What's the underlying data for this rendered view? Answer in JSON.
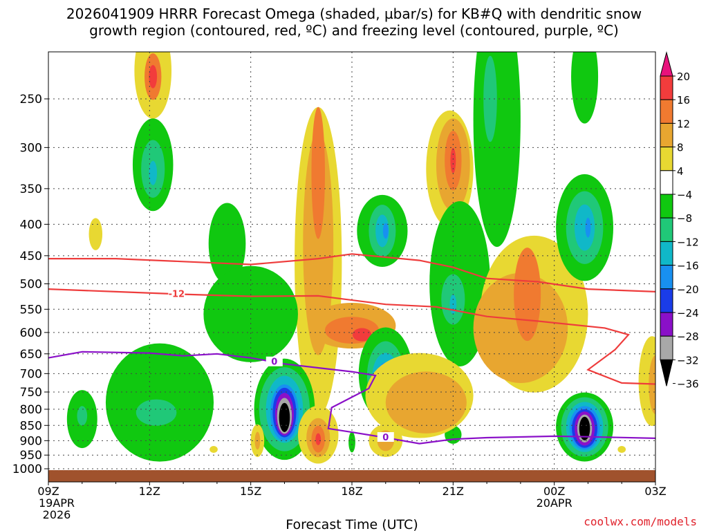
{
  "chart_data": {
    "type": "heatmap",
    "title_line1": "2026041909 HRRR Forecast Omega (shaded, µbar/s) for KB#Q with dendritic snow",
    "title_line2": "growth region (contoured, red, ºC) and freezing level (contoured, purple, ºC)",
    "xlabel": "Forecast Time (UTC)",
    "x_hours": [
      0,
      3,
      6,
      9,
      12,
      15,
      18
    ],
    "x_tick_labels": [
      "09Z",
      "12Z",
      "15Z",
      "18Z",
      "21Z",
      "00Z",
      "03Z"
    ],
    "x_date_labels": [
      {
        "hour": 0,
        "lines": [
          "19APR",
          "2026"
        ]
      },
      {
        "hour": 15,
        "lines": [
          "20APR"
        ]
      }
    ],
    "x_range_hours": [
      0,
      18
    ],
    "y_label": "",
    "y_ticks_hpa": [
      250,
      300,
      350,
      400,
      450,
      500,
      550,
      600,
      650,
      700,
      750,
      800,
      850,
      900,
      950,
      1000
    ],
    "y_range_hpa": [
      200,
      1025
    ],
    "y_scale": "log-pressure",
    "grid": true,
    "ground_color": "#a0522d",
    "colorbar": {
      "labels": [
        "20",
        "16",
        "12",
        "8",
        "4",
        "−4",
        "−8",
        "−12",
        "−16",
        "−20",
        "−24",
        "−28",
        "−32",
        "−36"
      ],
      "colors": [
        "#e8127c",
        "#f23c3c",
        "#f07a30",
        "#e8a630",
        "#e8d832",
        "#ffffff",
        "#10c810",
        "#20c878",
        "#10b8c8",
        "#1890f0",
        "#1a3ce8",
        "#8a10c8",
        "#a8a8a8",
        "#000000"
      ]
    },
    "red_contours": [
      {
        "level": "-12",
        "label_at_hour": 3.8,
        "points_h_hpa": [
          [
            0,
            510
          ],
          [
            2,
            515
          ],
          [
            4,
            520
          ],
          [
            6,
            524
          ],
          [
            8,
            523
          ],
          [
            10,
            540
          ],
          [
            11.5,
            545
          ],
          [
            13,
            565
          ],
          [
            14.5,
            575
          ],
          [
            16.5,
            590
          ],
          [
            17.2,
            605
          ],
          [
            16.8,
            640
          ],
          [
            16,
            690
          ],
          [
            17,
            725
          ],
          [
            18,
            728
          ]
        ]
      },
      {
        "level": "-15",
        "label_at_hour": null,
        "points_h_hpa": [
          [
            0,
            455
          ],
          [
            2,
            455
          ],
          [
            4,
            460
          ],
          [
            6,
            465
          ],
          [
            8,
            455
          ],
          [
            9,
            447
          ],
          [
            11,
            458
          ],
          [
            12,
            470
          ],
          [
            13,
            490
          ],
          [
            14.5,
            496
          ],
          [
            16,
            510
          ],
          [
            18,
            515
          ]
        ]
      }
    ],
    "purple_contours": [
      {
        "level": "0",
        "label_at_hour": 6.7,
        "points_h_hpa": [
          [
            0,
            660
          ],
          [
            1,
            645
          ],
          [
            3,
            648
          ],
          [
            4,
            655
          ],
          [
            5,
            650
          ],
          [
            6,
            660
          ],
          [
            7,
            675
          ],
          [
            8,
            685
          ],
          [
            9,
            695
          ],
          [
            9.7,
            705
          ],
          [
            9.5,
            740
          ],
          [
            8.4,
            795
          ],
          [
            8.3,
            860
          ],
          [
            9,
            872
          ],
          [
            10,
            890
          ],
          [
            11,
            910
          ],
          [
            12,
            895
          ],
          [
            13,
            890
          ],
          [
            15,
            885
          ],
          [
            16,
            887
          ],
          [
            18,
            892
          ]
        ]
      },
      {
        "level": "0",
        "label_at_hour": 10.0,
        "points_h_hpa": []
      }
    ],
    "omega_shaded_regions": [
      {
        "value": 4,
        "center_h_hpa": [
          3.1,
          225
        ],
        "radius_h_hpa": [
          0.55,
          40
        ]
      },
      {
        "value": 12,
        "center_h_hpa": [
          3.1,
          230
        ],
        "radius_h_hpa": [
          0.25,
          20
        ]
      },
      {
        "value": 16,
        "center_h_hpa": [
          3.1,
          230
        ],
        "radius_h_hpa": [
          0.12,
          10
        ]
      },
      {
        "value": -8,
        "center_h_hpa": [
          3.1,
          320
        ],
        "radius_h_hpa": [
          0.6,
          55
        ]
      },
      {
        "value": -12,
        "center_h_hpa": [
          3.1,
          325
        ],
        "radius_h_hpa": [
          0.35,
          35
        ]
      },
      {
        "value": -16,
        "center_h_hpa": [
          3.1,
          330
        ],
        "radius_h_hpa": [
          0.12,
          15
        ]
      },
      {
        "value": 4,
        "center_h_hpa": [
          1.4,
          415
        ],
        "radius_h_hpa": [
          0.2,
          25
        ]
      },
      {
        "value": -8,
        "center_h_hpa": [
          5.3,
          430
        ],
        "radius_h_hpa": [
          0.55,
          65
        ]
      },
      {
        "value": 4,
        "center_h_hpa": [
          8.0,
          460
        ],
        "radius_h_hpa": [
          0.7,
          240
        ]
      },
      {
        "value": 8,
        "center_h_hpa": [
          8.0,
          430
        ],
        "radius_h_hpa": [
          0.45,
          170
        ]
      },
      {
        "value": 12,
        "center_h_hpa": [
          8.0,
          330
        ],
        "radius_h_hpa": [
          0.2,
          80
        ]
      },
      {
        "value": 8,
        "center_h_hpa": [
          9.0,
          585
        ],
        "radius_h_hpa": [
          1.3,
          50
        ]
      },
      {
        "value": 12,
        "center_h_hpa": [
          9.0,
          595
        ],
        "radius_h_hpa": [
          0.8,
          30
        ]
      },
      {
        "value": 16,
        "center_h_hpa": [
          9.3,
          605
        ],
        "radius_h_hpa": [
          0.28,
          15
        ]
      },
      {
        "value": -8,
        "center_h_hpa": [
          9.9,
          410
        ],
        "radius_h_hpa": [
          0.75,
          55
        ]
      },
      {
        "value": -12,
        "center_h_hpa": [
          9.9,
          410
        ],
        "radius_h_hpa": [
          0.4,
          40
        ]
      },
      {
        "value": -16,
        "center_h_hpa": [
          9.9,
          410
        ],
        "radius_h_hpa": [
          0.2,
          25
        ]
      },
      {
        "value": -20,
        "center_h_hpa": [
          10.0,
          410
        ],
        "radius_h_hpa": [
          0.08,
          12
        ]
      },
      {
        "value": 4,
        "center_h_hpa": [
          11.9,
          325
        ],
        "radius_h_hpa": [
          0.7,
          70
        ]
      },
      {
        "value": 8,
        "center_h_hpa": [
          12.0,
          320
        ],
        "radius_h_hpa": [
          0.5,
          55
        ]
      },
      {
        "value": 12,
        "center_h_hpa": [
          12.0,
          315
        ],
        "radius_h_hpa": [
          0.25,
          35
        ]
      },
      {
        "value": 16,
        "center_h_hpa": [
          12.0,
          315
        ],
        "radius_h_hpa": [
          0.08,
          15
        ]
      },
      {
        "value": -8,
        "center_h_hpa": [
          12.2,
          500
        ],
        "radius_h_hpa": [
          0.9,
          150
        ]
      },
      {
        "value": -12,
        "center_h_hpa": [
          12.0,
          530
        ],
        "radius_h_hpa": [
          0.35,
          50
        ]
      },
      {
        "value": -16,
        "center_h_hpa": [
          12.0,
          540
        ],
        "radius_h_hpa": [
          0.1,
          20
        ]
      },
      {
        "value": -8,
        "center_h_hpa": [
          13.3,
          270
        ],
        "radius_h_hpa": [
          0.7,
          120
        ]
      },
      {
        "value": -12,
        "center_h_hpa": [
          13.1,
          250
        ],
        "radius_h_hpa": [
          0.2,
          40
        ]
      },
      {
        "value": 4,
        "center_h_hpa": [
          14.4,
          560
        ],
        "radius_h_hpa": [
          1.6,
          160
        ]
      },
      {
        "value": 8,
        "center_h_hpa": [
          14.0,
          590
        ],
        "radius_h_hpa": [
          1.4,
          120
        ]
      },
      {
        "value": 12,
        "center_h_hpa": [
          14.2,
          520
        ],
        "radius_h_hpa": [
          0.4,
          90
        ]
      },
      {
        "value": -8,
        "center_h_hpa": [
          15.9,
          405
        ],
        "radius_h_hpa": [
          0.85,
          80
        ]
      },
      {
        "value": -12,
        "center_h_hpa": [
          15.9,
          405
        ],
        "radius_h_hpa": [
          0.55,
          55
        ]
      },
      {
        "value": -16,
        "center_h_hpa": [
          15.9,
          405
        ],
        "radius_h_hpa": [
          0.3,
          35
        ]
      },
      {
        "value": -20,
        "center_h_hpa": [
          16.0,
          405
        ],
        "radius_h_hpa": [
          0.08,
          15
        ]
      },
      {
        "value": -8,
        "center_h_hpa": [
          15.9,
          230
        ],
        "radius_h_hpa": [
          0.4,
          40
        ]
      },
      {
        "value": -8,
        "center_h_hpa": [
          3.3,
          780
        ],
        "radius_h_hpa": [
          1.6,
          170
        ]
      },
      {
        "value": -12,
        "center_h_hpa": [
          3.2,
          810
        ],
        "radius_h_hpa": [
          0.6,
          40
        ]
      },
      {
        "value": -8,
        "center_h_hpa": [
          6.0,
          560
        ],
        "radius_h_hpa": [
          1.4,
          100
        ]
      },
      {
        "value": -8,
        "center_h_hpa": [
          1.0,
          830
        ],
        "radius_h_hpa": [
          0.45,
          90
        ]
      },
      {
        "value": -12,
        "center_h_hpa": [
          1.0,
          820
        ],
        "radius_h_hpa": [
          0.15,
          30
        ]
      },
      {
        "value": -8,
        "center_h_hpa": [
          7.0,
          800
        ],
        "radius_h_hpa": [
          0.9,
          150
        ]
      },
      {
        "value": -12,
        "center_h_hpa": [
          7.0,
          800
        ],
        "radius_h_hpa": [
          0.75,
          125
        ]
      },
      {
        "value": -16,
        "center_h_hpa": [
          7.0,
          800
        ],
        "radius_h_hpa": [
          0.55,
          100
        ]
      },
      {
        "value": -20,
        "center_h_hpa": [
          7.0,
          810
        ],
        "radius_h_hpa": [
          0.42,
          85
        ]
      },
      {
        "value": -24,
        "center_h_hpa": [
          7.0,
          810
        ],
        "radius_h_hpa": [
          0.35,
          75
        ]
      },
      {
        "value": -28,
        "center_h_hpa": [
          7.0,
          815
        ],
        "radius_h_hpa": [
          0.28,
          65
        ]
      },
      {
        "value": -32,
        "center_h_hpa": [
          7.0,
          820
        ],
        "radius_h_hpa": [
          0.22,
          55
        ]
      },
      {
        "value": -36,
        "center_h_hpa": [
          7.0,
          825
        ],
        "radius_h_hpa": [
          0.16,
          45
        ]
      },
      {
        "value": 4,
        "center_h_hpa": [
          6.2,
          900
        ],
        "radius_h_hpa": [
          0.2,
          55
        ]
      },
      {
        "value": 8,
        "center_h_hpa": [
          6.2,
          900
        ],
        "radius_h_hpa": [
          0.08,
          30
        ]
      },
      {
        "value": 4,
        "center_h_hpa": [
          8.0,
          880
        ],
        "radius_h_hpa": [
          0.6,
          95
        ]
      },
      {
        "value": 8,
        "center_h_hpa": [
          8.0,
          890
        ],
        "radius_h_hpa": [
          0.35,
          65
        ]
      },
      {
        "value": 12,
        "center_h_hpa": [
          8.0,
          895
        ],
        "radius_h_hpa": [
          0.2,
          45
        ]
      },
      {
        "value": 16,
        "center_h_hpa": [
          8.0,
          895
        ],
        "radius_h_hpa": [
          0.08,
          20
        ]
      },
      {
        "value": -8,
        "center_h_hpa": [
          9.0,
          905
        ],
        "radius_h_hpa": [
          0.1,
          35
        ]
      },
      {
        "value": 4,
        "center_h_hpa": [
          10.0,
          900
        ],
        "radius_h_hpa": [
          0.5,
          55
        ]
      },
      {
        "value": 8,
        "center_h_hpa": [
          10.0,
          900
        ],
        "radius_h_hpa": [
          0.25,
          35
        ]
      },
      {
        "value": -8,
        "center_h_hpa": [
          10.0,
          700
        ],
        "radius_h_hpa": [
          0.8,
          120
        ]
      },
      {
        "value": -12,
        "center_h_hpa": [
          10.0,
          705
        ],
        "radius_h_hpa": [
          0.55,
          90
        ]
      },
      {
        "value": -16,
        "center_h_hpa": [
          10.0,
          710
        ],
        "radius_h_hpa": [
          0.4,
          65
        ]
      },
      {
        "value": -20,
        "center_h_hpa": [
          10.0,
          715
        ],
        "radius_h_hpa": [
          0.28,
          45
        ]
      },
      {
        "value": -28,
        "center_h_hpa": [
          10.0,
          715
        ],
        "radius_h_hpa": [
          0.12,
          25
        ]
      },
      {
        "value": -8,
        "center_h_hpa": [
          12.0,
          880
        ],
        "radius_h_hpa": [
          0.25,
          30
        ]
      },
      {
        "value": 4,
        "center_h_hpa": [
          11.0,
          760
        ],
        "radius_h_hpa": [
          1.6,
          120
        ]
      },
      {
        "value": 8,
        "center_h_hpa": [
          11.2,
          780
        ],
        "radius_h_hpa": [
          1.2,
          90
        ]
      },
      {
        "value": -8,
        "center_h_hpa": [
          15.9,
          855
        ],
        "radius_h_hpa": [
          0.85,
          110
        ]
      },
      {
        "value": -12,
        "center_h_hpa": [
          15.9,
          855
        ],
        "radius_h_hpa": [
          0.7,
          95
        ]
      },
      {
        "value": -16,
        "center_h_hpa": [
          15.9,
          855
        ],
        "radius_h_hpa": [
          0.55,
          80
        ]
      },
      {
        "value": -20,
        "center_h_hpa": [
          15.9,
          858
        ],
        "radius_h_hpa": [
          0.45,
          70
        ]
      },
      {
        "value": -24,
        "center_h_hpa": [
          15.9,
          860
        ],
        "radius_h_hpa": [
          0.38,
          62
        ]
      },
      {
        "value": -28,
        "center_h_hpa": [
          15.9,
          860
        ],
        "radius_h_hpa": [
          0.3,
          55
        ]
      },
      {
        "value": -32,
        "center_h_hpa": [
          15.9,
          860
        ],
        "radius_h_hpa": [
          0.22,
          45
        ]
      },
      {
        "value": -36,
        "center_h_hpa": [
          15.9,
          860
        ],
        "radius_h_hpa": [
          0.16,
          38
        ]
      },
      {
        "value": 4,
        "center_h_hpa": [
          17.9,
          720
        ],
        "radius_h_hpa": [
          0.4,
          120
        ]
      },
      {
        "value": 8,
        "center_h_hpa": [
          18.0,
          730
        ],
        "radius_h_hpa": [
          0.2,
          80
        ]
      },
      {
        "value": 4,
        "center_h_hpa": [
          4.9,
          930
        ],
        "radius_h_hpa": [
          0.12,
          12
        ]
      },
      {
        "value": 4,
        "center_h_hpa": [
          17.0,
          930
        ],
        "radius_h_hpa": [
          0.12,
          12
        ]
      }
    ]
  },
  "credit": "coolwx.com/models"
}
